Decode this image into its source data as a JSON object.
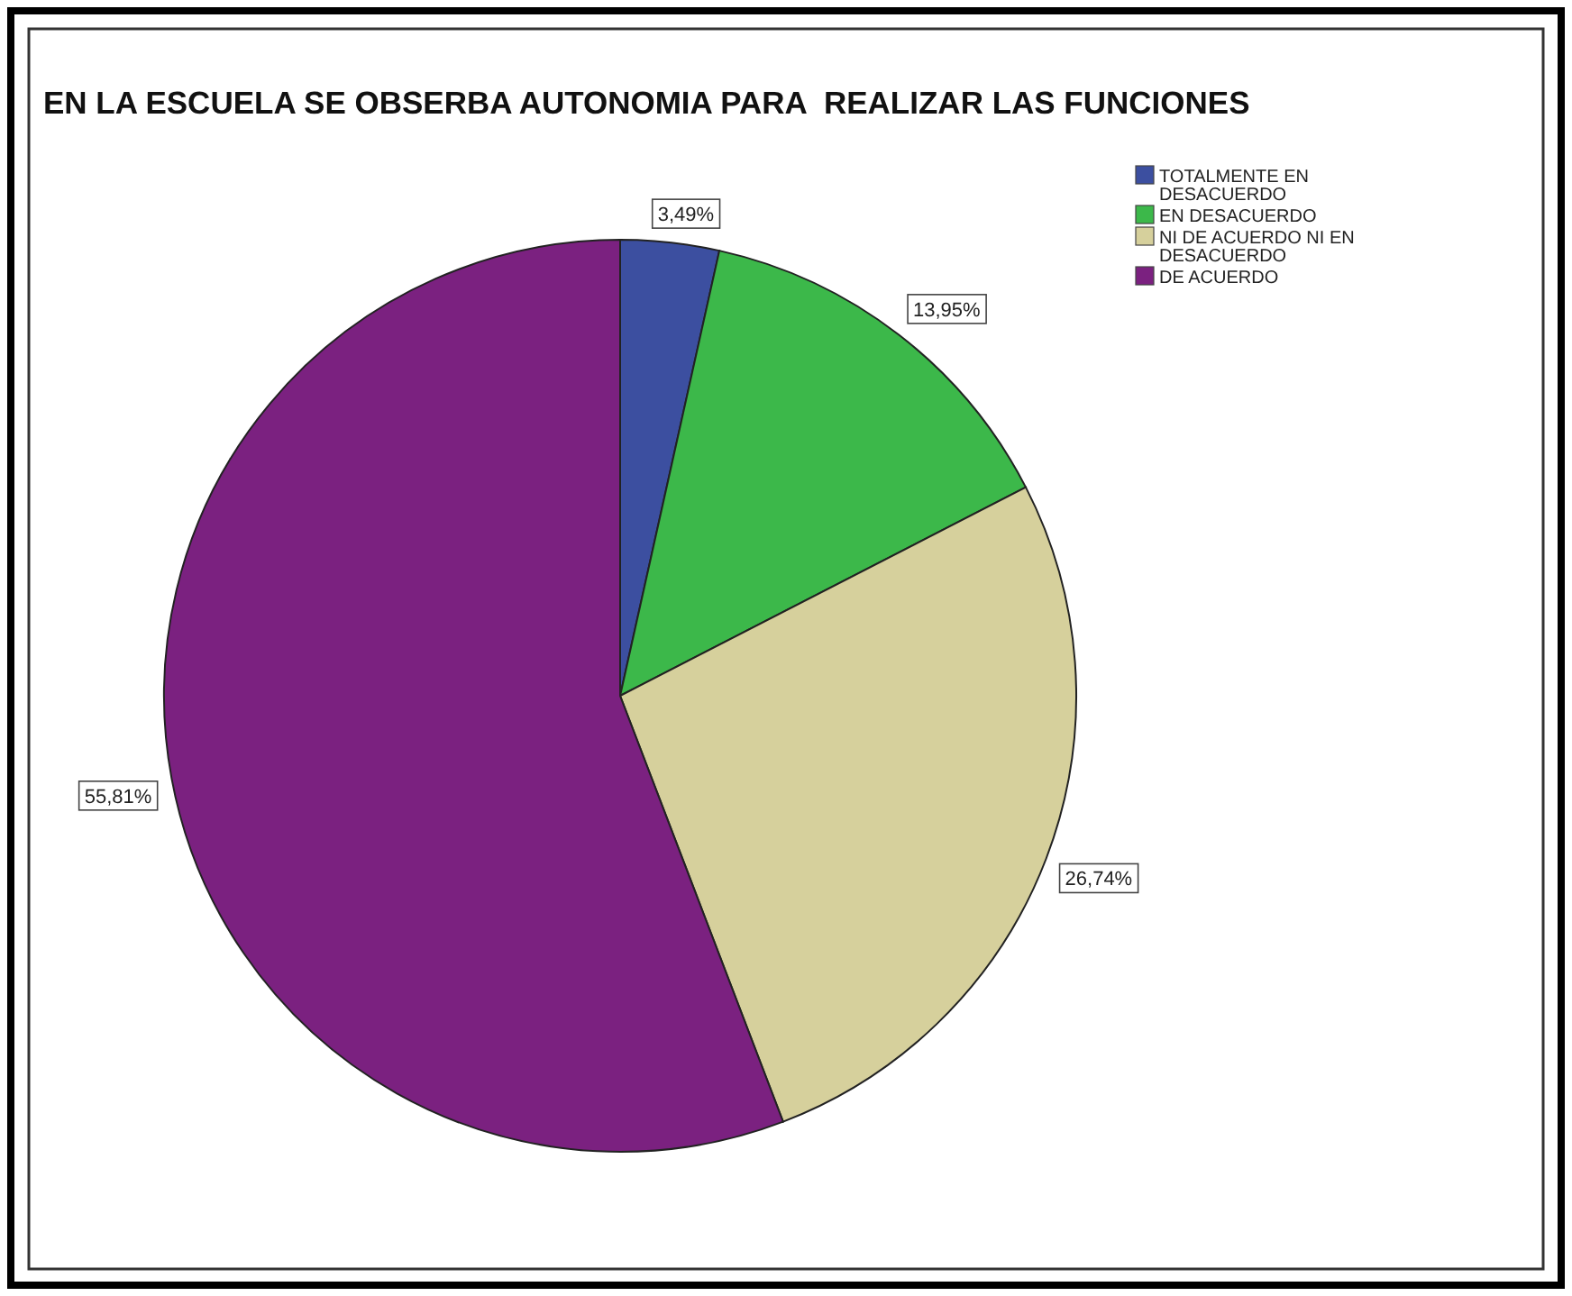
{
  "chart_data": {
    "type": "pie",
    "title": "EN LA ESCUELA SE OBSERBA AUTONOMIA PARA  REALIZAR LAS FUNCIONES",
    "categories": [
      "TOTALMENTE EN DESACUERDO",
      "EN DESACUERDO",
      "NI DE ACUERDO NI EN DESACUERDO",
      "DE ACUERDO"
    ],
    "values": [
      3.49,
      13.95,
      26.74,
      55.81
    ],
    "value_labels": [
      "3,49%",
      "13,95%",
      "26,74%",
      "55,81%"
    ],
    "colors": [
      "#3c4fa0",
      "#3cb84a",
      "#d6d09c",
      "#7b2180"
    ],
    "legend": "top right"
  }
}
